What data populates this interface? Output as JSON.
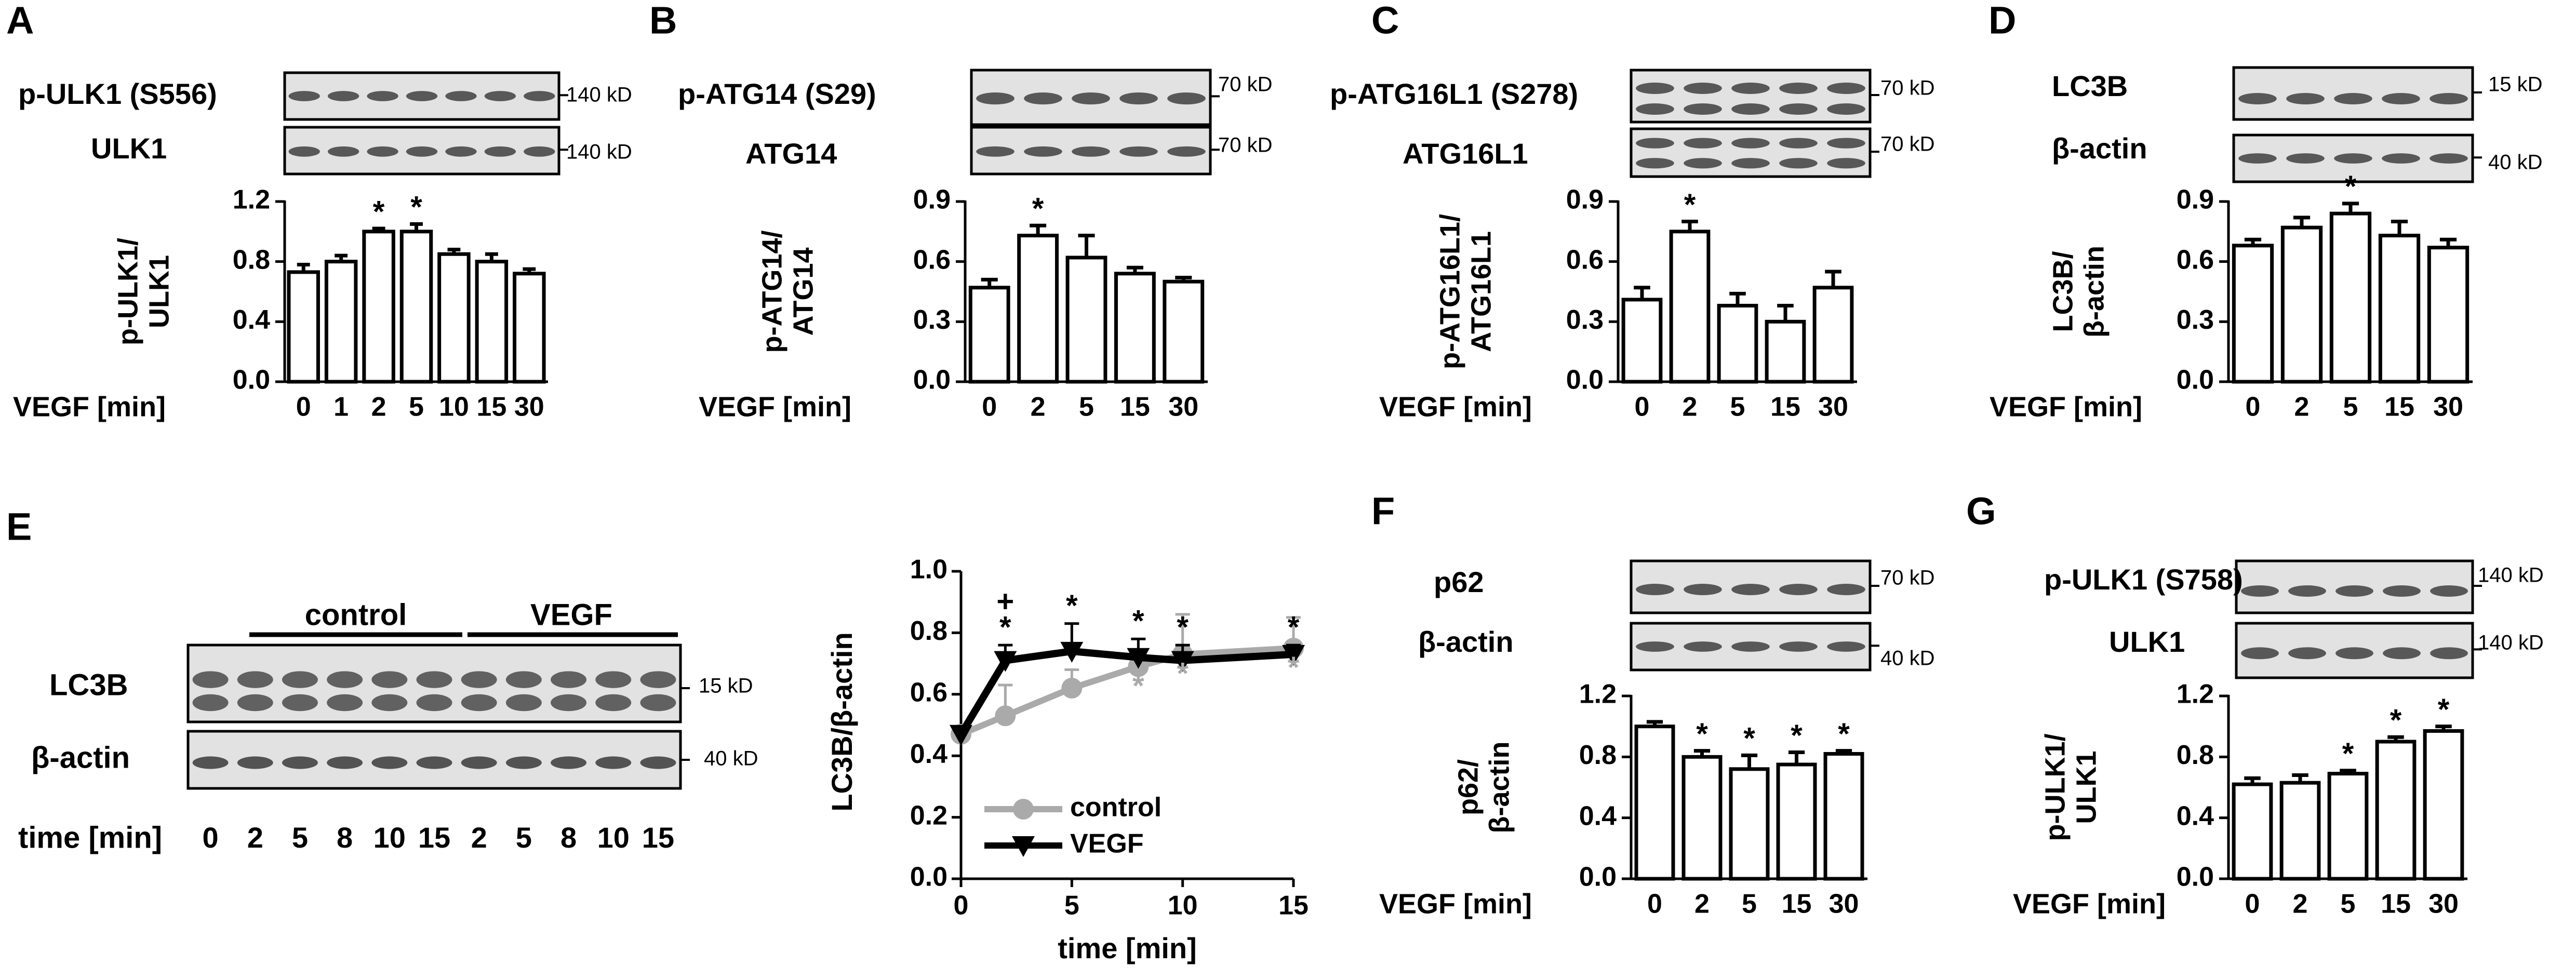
{
  "figure": {
    "panels": {
      "A": {
        "letter": "A",
        "blot_labels": [
          "p-ULK1 (S556)",
          "ULK1"
        ],
        "kd_labels": [
          "140 kD",
          "140 kD"
        ],
        "ylabel_lines": [
          "p-ULK1/",
          "ULK1"
        ],
        "xlabel": "VEGF [min]"
      },
      "B": {
        "letter": "B",
        "blot_labels": [
          "p-ATG14 (S29)",
          "ATG14"
        ],
        "kd_labels": [
          "70 kD",
          "70 kD"
        ],
        "ylabel_lines": [
          "p-ATG14/",
          "ATG14"
        ],
        "xlabel": "VEGF [min]"
      },
      "C": {
        "letter": "C",
        "blot_labels": [
          "p-ATG16L1 (S278)",
          "ATG16L1"
        ],
        "kd_labels": [
          "70 kD",
          "70 kD"
        ],
        "ylabel_lines": [
          "p-ATG16L1/",
          "ATG16L1"
        ],
        "xlabel": "VEGF [min]"
      },
      "D": {
        "letter": "D",
        "blot_labels": [
          "LC3B",
          "β-actin"
        ],
        "kd_labels": [
          "15 kD",
          "40 kD"
        ],
        "ylabel_lines": [
          "LC3B/",
          "β-actin"
        ],
        "xlabel": "VEGF [min]"
      },
      "E": {
        "letter": "E",
        "group_labels": [
          "control",
          "VEGF"
        ],
        "blot_labels": [
          "LC3B",
          "β-actin"
        ],
        "kd_labels": [
          "15 kD",
          "40 kD"
        ],
        "time_label": "time [min]",
        "time_values": [
          "0",
          "2",
          "5",
          "8",
          "10",
          "15",
          "2",
          "5",
          "8",
          "10",
          "15"
        ],
        "ylabel": "LC3B/β-actin",
        "xlabel": "time [min]"
      },
      "F": {
        "letter": "F",
        "blot_labels": [
          "p62",
          "β-actin"
        ],
        "kd_labels": [
          "70 kD",
          "40 kD"
        ],
        "ylabel_lines": [
          "p62/",
          "β-actin"
        ],
        "xlabel": "VEGF [min]"
      },
      "G": {
        "letter": "G",
        "blot_labels": [
          "p-ULK1 (S758)",
          "ULK1"
        ],
        "kd_labels": [
          "140 kD",
          "140 kD"
        ],
        "ylabel_lines": [
          "p-ULK1/",
          "ULK1"
        ],
        "xlabel": "VEGF [min]"
      }
    }
  },
  "chart_data": [
    {
      "panel": "A",
      "type": "bar",
      "categories": [
        "0",
        "1",
        "2",
        "5",
        "10",
        "15",
        "30"
      ],
      "values": [
        0.73,
        0.8,
        1.0,
        1.0,
        0.85,
        0.8,
        0.72
      ],
      "errors": [
        0.05,
        0.04,
        0.02,
        0.05,
        0.03,
        0.05,
        0.03
      ],
      "significant": [
        false,
        false,
        true,
        true,
        false,
        false,
        false
      ],
      "ylim": [
        0,
        1.2
      ],
      "yticks": [
        "0.0",
        "0.4",
        "0.8",
        "1.2"
      ],
      "ylabel": "p-ULK1/ULK1",
      "xlabel": "VEGF [min]"
    },
    {
      "panel": "B",
      "type": "bar",
      "categories": [
        "0",
        "2",
        "5",
        "15",
        "30"
      ],
      "values": [
        0.47,
        0.73,
        0.62,
        0.54,
        0.5
      ],
      "errors": [
        0.04,
        0.05,
        0.11,
        0.03,
        0.02
      ],
      "significant": [
        false,
        true,
        false,
        false,
        false
      ],
      "ylim": [
        0,
        0.9
      ],
      "yticks": [
        "0.0",
        "0.3",
        "0.6",
        "0.9"
      ],
      "ylabel": "p-ATG14/ATG14",
      "xlabel": "VEGF [min]"
    },
    {
      "panel": "C",
      "type": "bar",
      "categories": [
        "0",
        "2",
        "5",
        "15",
        "30"
      ],
      "values": [
        0.41,
        0.75,
        0.38,
        0.3,
        0.47
      ],
      "errors": [
        0.06,
        0.05,
        0.06,
        0.08,
        0.08
      ],
      "significant": [
        false,
        true,
        false,
        false,
        false
      ],
      "ylim": [
        0,
        0.9
      ],
      "yticks": [
        "0.0",
        "0.3",
        "0.6",
        "0.9"
      ],
      "ylabel": "p-ATG16L1/ATG16L1",
      "xlabel": "VEGF [min]"
    },
    {
      "panel": "D",
      "type": "bar",
      "categories": [
        "0",
        "2",
        "5",
        "15",
        "30"
      ],
      "values": [
        0.68,
        0.77,
        0.84,
        0.73,
        0.67
      ],
      "errors": [
        0.03,
        0.05,
        0.05,
        0.07,
        0.04
      ],
      "significant": [
        false,
        false,
        true,
        false,
        false
      ],
      "ylim": [
        0,
        0.9
      ],
      "yticks": [
        "0.0",
        "0.3",
        "0.6",
        "0.9"
      ],
      "ylabel": "LC3B/β-actin",
      "xlabel": "VEGF [min]"
    },
    {
      "panel": "E",
      "type": "line",
      "x": [
        0,
        2,
        5,
        8,
        10,
        15
      ],
      "series": [
        {
          "name": "control",
          "color": "#aaaaaa",
          "marker": "circle",
          "values": [
            0.47,
            0.53,
            0.62,
            0.69,
            0.73,
            0.75
          ],
          "errors": [
            0.02,
            0.1,
            0.06,
            0.04,
            0.13,
            0.1
          ]
        },
        {
          "name": "VEGF",
          "color": "#000000",
          "marker": "triangle-down",
          "values": [
            0.47,
            0.71,
            0.74,
            0.72,
            0.71,
            0.73
          ],
          "errors": [
            0.02,
            0.05,
            0.09,
            0.06,
            0.05,
            0.03
          ]
        }
      ],
      "star_black_at": [
        2,
        5,
        8,
        10,
        15
      ],
      "plus_at": [
        2
      ],
      "star_gray_at": [
        8,
        10,
        15
      ],
      "xlim": [
        0,
        15
      ],
      "xticks": [
        "0",
        "5",
        "10",
        "15"
      ],
      "ylim": [
        0,
        1.0
      ],
      "yticks": [
        "0.0",
        "0.2",
        "0.4",
        "0.6",
        "0.8",
        "1.0"
      ],
      "ylabel": "LC3B/β-actin",
      "xlabel": "time [min]",
      "legend": "bottom-left"
    },
    {
      "panel": "F",
      "type": "bar",
      "categories": [
        "0",
        "2",
        "5",
        "15",
        "30"
      ],
      "values": [
        1.0,
        0.8,
        0.72,
        0.75,
        0.82
      ],
      "errors": [
        0.03,
        0.04,
        0.09,
        0.08,
        0.02
      ],
      "significant": [
        false,
        true,
        true,
        true,
        true
      ],
      "ylim": [
        0,
        1.2
      ],
      "yticks": [
        "0.0",
        "0.4",
        "0.8",
        "1.2"
      ],
      "ylabel": "p62/β-actin",
      "xlabel": "VEGF [min]"
    },
    {
      "panel": "G",
      "type": "bar",
      "categories": [
        "0",
        "2",
        "5",
        "15",
        "30"
      ],
      "values": [
        0.62,
        0.63,
        0.69,
        0.9,
        0.97
      ],
      "errors": [
        0.04,
        0.05,
        0.02,
        0.03,
        0.03
      ],
      "significant": [
        false,
        false,
        true,
        true,
        true
      ],
      "ylim": [
        0,
        1.2
      ],
      "yticks": [
        "0.0",
        "0.4",
        "0.8",
        "1.2"
      ],
      "ylabel": "p-ULK1/ULK1",
      "xlabel": "VEGF [min]"
    }
  ]
}
